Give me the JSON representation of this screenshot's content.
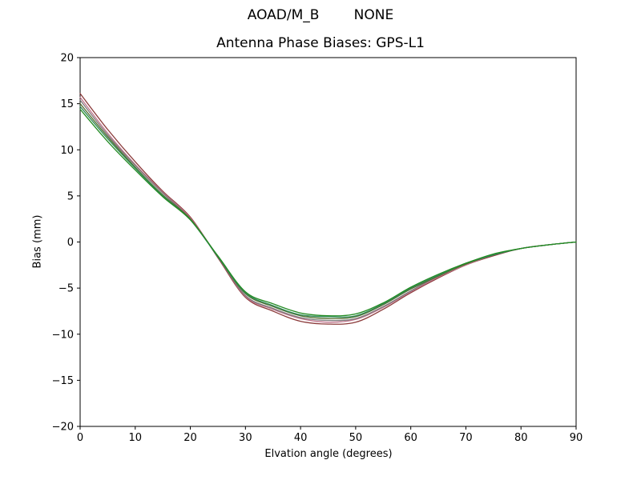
{
  "window": {
    "background": "#ffffff",
    "axes_edge_color": "#000000",
    "text_color": "#000000"
  },
  "chart_data": {
    "type": "line",
    "title": "AOAD/M_B        NONE",
    "subtitle": "Antenna Phase Biases: GPS-L1",
    "xlabel": "Elvation angle (degrees)",
    "ylabel": "Bias (mm)",
    "xlim": [
      0,
      90
    ],
    "ylim": [
      -20,
      20
    ],
    "xticks": [
      0,
      10,
      20,
      30,
      40,
      50,
      60,
      70,
      80,
      90
    ],
    "yticks": [
      -20,
      -15,
      -10,
      -5,
      0,
      5,
      10,
      15,
      20
    ],
    "grid": false,
    "legend_position": "none",
    "x": [
      0,
      5,
      10,
      15,
      20,
      25,
      30,
      35,
      40,
      45,
      50,
      55,
      60,
      65,
      70,
      75,
      80,
      85,
      90
    ],
    "series": [
      {
        "name": "curve-1",
        "color": "#8b3a3a",
        "values": [
          16.1,
          12.2,
          8.7,
          5.5,
          2.7,
          -1.7,
          -6.0,
          -7.5,
          -8.6,
          -8.9,
          -8.7,
          -7.3,
          -5.5,
          -3.9,
          -2.5,
          -1.5,
          -0.7,
          -0.3,
          0.0
        ]
      },
      {
        "name": "curve-2",
        "color": "#c0748c",
        "values": [
          15.7,
          11.8,
          8.4,
          5.4,
          2.6,
          -1.6,
          -5.9,
          -7.3,
          -8.3,
          -8.7,
          -8.4,
          -7.1,
          -5.4,
          -3.8,
          -2.5,
          -1.4,
          -0.7,
          -0.3,
          0.0
        ]
      },
      {
        "name": "curve-3",
        "color": "#7a7a7a",
        "values": [
          15.4,
          11.6,
          8.3,
          5.3,
          2.5,
          -1.6,
          -5.8,
          -7.2,
          -8.2,
          -8.5,
          -8.3,
          -7.0,
          -5.3,
          -3.7,
          -2.4,
          -1.4,
          -0.7,
          -0.3,
          0.0
        ]
      },
      {
        "name": "curve-4",
        "color": "#556b2f",
        "values": [
          15.0,
          11.4,
          8.1,
          5.1,
          2.5,
          -1.6,
          -5.6,
          -7.0,
          -8.0,
          -8.3,
          -8.1,
          -6.8,
          -5.1,
          -3.7,
          -2.4,
          -1.4,
          -0.7,
          -0.3,
          0.0
        ]
      },
      {
        "name": "curve-5",
        "color": "#2e8b57",
        "values": [
          14.7,
          11.2,
          8.0,
          5.0,
          2.4,
          -1.6,
          -5.5,
          -6.9,
          -7.9,
          -8.1,
          -8.0,
          -6.7,
          -5.0,
          -3.6,
          -2.3,
          -1.4,
          -0.7,
          -0.3,
          0.0
        ]
      },
      {
        "name": "curve-6",
        "color": "#228b22",
        "values": [
          14.4,
          10.9,
          7.8,
          4.9,
          2.4,
          -1.5,
          -5.4,
          -6.7,
          -7.7,
          -8.0,
          -7.8,
          -6.6,
          -4.9,
          -3.5,
          -2.3,
          -1.3,
          -0.7,
          -0.3,
          0.0
        ]
      }
    ]
  }
}
